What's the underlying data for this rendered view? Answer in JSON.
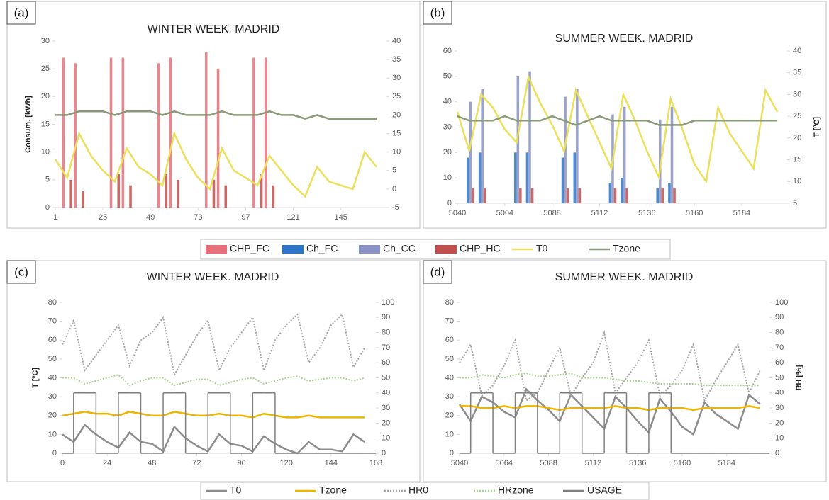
{
  "chart_data": [
    {
      "type": "combo",
      "panel": "(a)",
      "title": "WINTER WEEK. MADRID",
      "ylabel": "Consum. [kWh]",
      "x": [
        1,
        7,
        13,
        19,
        25,
        31,
        37,
        43,
        49,
        55,
        61,
        67,
        73,
        79,
        85,
        91,
        97,
        103,
        109,
        115,
        121,
        127,
        133,
        139,
        145,
        151,
        157,
        163
      ],
      "xlim": [
        1,
        168
      ],
      "xticks": [
        1,
        25,
        49,
        73,
        97,
        121,
        145
      ],
      "ylim": [
        0,
        30
      ],
      "yticks": [
        0,
        5,
        10,
        15,
        20,
        25,
        30
      ],
      "y2lim": [
        -5,
        40
      ],
      "y2ticks": [
        -5,
        0,
        5,
        10,
        15,
        20,
        25,
        30,
        35,
        40
      ],
      "series": [
        {
          "name": "CHP_FC",
          "type": "bar",
          "color": "#e8707a",
          "values": [
            0,
            27,
            26,
            0,
            0,
            27,
            27,
            0,
            0,
            26,
            27,
            0,
            0,
            28,
            25,
            0,
            0,
            27,
            27,
            0,
            0,
            0,
            0,
            0,
            0,
            0,
            0,
            0
          ]
        },
        {
          "name": "Ch_FC",
          "type": "bar",
          "color": "#2e75c8",
          "values": [
            0,
            0,
            0,
            0,
            0,
            0,
            0,
            0,
            0,
            0,
            0,
            0,
            0,
            0,
            0,
            0,
            0,
            0,
            0,
            0,
            0,
            0,
            0,
            0,
            0,
            0,
            0,
            0
          ]
        },
        {
          "name": "Ch_CC",
          "type": "bar",
          "color": "#8a93c4",
          "values": [
            0,
            0,
            0,
            0,
            0,
            0,
            0,
            0,
            0,
            0,
            0,
            0,
            0,
            0,
            0,
            0,
            0,
            0,
            0,
            0,
            0,
            0,
            0,
            0,
            0,
            0,
            0,
            0
          ]
        },
        {
          "name": "CHP_HC",
          "type": "bar",
          "color": "#c0504d",
          "values": [
            0,
            5,
            3,
            0,
            0,
            6,
            4,
            0,
            0,
            6,
            5,
            0,
            0,
            5,
            4,
            0,
            0,
            6,
            4,
            0,
            0,
            0,
            0,
            0,
            0,
            0,
            0,
            0
          ]
        },
        {
          "name": "T0",
          "type": "line",
          "axis": "y2",
          "color": "#ecdf5a",
          "values": [
            8,
            3,
            15,
            9,
            5,
            2,
            11,
            6,
            4,
            1,
            15,
            8,
            3,
            0,
            11,
            5,
            3,
            1,
            9,
            5,
            1,
            -2,
            6,
            2,
            1,
            0,
            10,
            6
          ]
        },
        {
          "name": "Tzone",
          "type": "line",
          "axis": "y2",
          "color": "#8a9a78",
          "values": [
            20,
            20,
            21,
            21,
            21,
            20,
            21,
            21,
            21,
            20,
            21,
            20,
            20,
            20,
            21,
            20,
            20,
            20,
            21,
            20,
            20,
            19,
            20,
            19,
            19,
            19,
            19,
            19
          ]
        }
      ]
    },
    {
      "type": "combo",
      "panel": "(b)",
      "title": "SUMMER WEEK. MADRID",
      "y2label": "T [ºC]",
      "x": [
        5040,
        5046,
        5052,
        5058,
        5064,
        5070,
        5076,
        5082,
        5088,
        5094,
        5100,
        5106,
        5112,
        5118,
        5124,
        5130,
        5136,
        5142,
        5148,
        5154,
        5160,
        5166,
        5172,
        5178,
        5184,
        5190,
        5196,
        5202
      ],
      "xlim": [
        5040,
        5207
      ],
      "xticks": [
        5040,
        5064,
        5088,
        5112,
        5136,
        5160,
        5184
      ],
      "ylim": [
        0,
        60
      ],
      "yticks": [
        0,
        10,
        20,
        30,
        40,
        50,
        60
      ],
      "y2lim": [
        5,
        40
      ],
      "y2ticks": [
        5,
        10,
        15,
        20,
        25,
        30,
        35,
        40
      ],
      "series": [
        {
          "type": "bar",
          "color": "#e8707a",
          "values": [
            0,
            0,
            0,
            0,
            0,
            0,
            0,
            0,
            0,
            0,
            0,
            0,
            0,
            0,
            0,
            0,
            0,
            0,
            0,
            0,
            0,
            0,
            0,
            0,
            0,
            0,
            0,
            0
          ]
        },
        {
          "type": "bar",
          "color": "#2e75c8",
          "values": [
            0,
            18,
            20,
            0,
            0,
            20,
            20,
            0,
            0,
            18,
            20,
            0,
            0,
            8,
            10,
            0,
            0,
            6,
            8,
            0,
            0,
            0,
            0,
            0,
            0,
            0,
            0,
            0
          ]
        },
        {
          "type": "bar",
          "color": "#8a93c4",
          "values": [
            0,
            40,
            45,
            0,
            0,
            50,
            52,
            0,
            0,
            42,
            45,
            0,
            0,
            35,
            38,
            0,
            0,
            33,
            38,
            0,
            0,
            0,
            0,
            0,
            0,
            0,
            0,
            0
          ]
        },
        {
          "type": "bar",
          "color": "#c0504d",
          "values": [
            0,
            6,
            6,
            0,
            0,
            6,
            6,
            0,
            0,
            6,
            6,
            0,
            0,
            6,
            6,
            0,
            0,
            6,
            6,
            0,
            0,
            0,
            0,
            0,
            0,
            0,
            0,
            0
          ]
        },
        {
          "type": "line",
          "axis": "y2",
          "color": "#ecdf5a",
          "values": [
            26,
            17,
            30,
            27,
            22,
            19,
            34,
            28,
            23,
            17,
            31,
            25,
            19,
            13,
            30,
            24,
            17,
            11,
            29,
            22,
            14,
            10,
            27,
            21,
            17,
            13,
            31,
            26
          ]
        },
        {
          "type": "line",
          "axis": "y2",
          "color": "#8a9a78",
          "values": [
            25,
            24,
            24,
            24,
            25,
            24,
            24,
            24,
            25,
            24,
            23,
            24,
            25,
            24,
            24,
            24,
            24,
            23,
            23,
            23,
            24,
            24,
            24,
            24,
            24,
            24,
            24,
            24
          ]
        }
      ]
    },
    {
      "type": "line",
      "panel": "(c)",
      "title": "WINTER WEEK. MADRID",
      "ylabel": "T [ºC]",
      "x": [
        0,
        6,
        12,
        18,
        24,
        30,
        36,
        42,
        48,
        54,
        60,
        66,
        72,
        78,
        84,
        90,
        96,
        102,
        108,
        114,
        120,
        126,
        132,
        138,
        144,
        150,
        156,
        162
      ],
      "xlim": [
        0,
        168
      ],
      "xticks": [
        0,
        24,
        48,
        72,
        96,
        120,
        144,
        168
      ],
      "ylim": [
        0,
        80
      ],
      "yticks": [
        0,
        10,
        20,
        30,
        40,
        50,
        60,
        70,
        80
      ],
      "y2lim": [
        0,
        100
      ],
      "y2ticks": [
        0,
        10,
        20,
        30,
        40,
        50,
        60,
        70,
        80,
        90,
        100
      ],
      "series": [
        {
          "name": "T0",
          "type": "line",
          "color": "#8c8c8c",
          "values": [
            10,
            6,
            15,
            10,
            6,
            3,
            11,
            6,
            5,
            1,
            14,
            8,
            4,
            1,
            10,
            5,
            4,
            1,
            9,
            5,
            2,
            0,
            6,
            2,
            2,
            1,
            10,
            6
          ]
        },
        {
          "name": "Tzone",
          "type": "line",
          "color": "#f0b400",
          "values": [
            20,
            21,
            22,
            21,
            21,
            20,
            22,
            21,
            20,
            20,
            22,
            21,
            20,
            20,
            21,
            20,
            20,
            19,
            21,
            20,
            19,
            19,
            20,
            19,
            19,
            19,
            19,
            19
          ]
        },
        {
          "name": "HR0",
          "type": "line",
          "axis": "y2",
          "dash": true,
          "color": "#a6a6a6",
          "values": [
            72,
            88,
            55,
            65,
            75,
            85,
            58,
            75,
            80,
            90,
            52,
            65,
            78,
            88,
            55,
            70,
            80,
            90,
            55,
            75,
            85,
            92,
            60,
            70,
            85,
            92,
            57,
            70
          ]
        },
        {
          "name": "HRzone",
          "type": "line",
          "axis": "y2",
          "dash": true,
          "color": "#a9d08e",
          "values": [
            50,
            50,
            46,
            48,
            50,
            52,
            45,
            48,
            50,
            50,
            45,
            47,
            49,
            49,
            45,
            47,
            49,
            50,
            46,
            48,
            50,
            51,
            48,
            49,
            50,
            50,
            48,
            50
          ]
        },
        {
          "name": "USAGE",
          "type": "step",
          "axis": "y2",
          "color": "#7f7f7f",
          "values": [
            0,
            40,
            40,
            0,
            0,
            40,
            40,
            0,
            0,
            40,
            40,
            0,
            0,
            40,
            40,
            0,
            0,
            40,
            40,
            0,
            0,
            0,
            0,
            0,
            0,
            0,
            0,
            0
          ]
        }
      ]
    },
    {
      "type": "line",
      "panel": "(d)",
      "title": "SUMMER WEEK. MADRID",
      "y2label": "RH [%]",
      "x": [
        5040,
        5046,
        5052,
        5058,
        5064,
        5070,
        5076,
        5082,
        5088,
        5094,
        5100,
        5106,
        5112,
        5118,
        5124,
        5130,
        5136,
        5142,
        5148,
        5154,
        5160,
        5166,
        5172,
        5178,
        5184,
        5190,
        5196,
        5202
      ],
      "xlim": [
        5040,
        5207
      ],
      "xticks": [
        5040,
        5064,
        5088,
        5112,
        5136,
        5160,
        5184
      ],
      "ylim": [
        0,
        80
      ],
      "yticks": [
        0,
        10,
        20,
        30,
        40,
        50,
        60,
        70,
        80
      ],
      "y2lim": [
        0,
        100
      ],
      "y2ticks": [
        0,
        10,
        20,
        30,
        40,
        50,
        60,
        70,
        80,
        90,
        100
      ],
      "series": [
        {
          "type": "line",
          "color": "#8c8c8c",
          "values": [
            26,
            17,
            30,
            27,
            22,
            19,
            34,
            28,
            23,
            17,
            31,
            25,
            19,
            13,
            30,
            24,
            17,
            11,
            29,
            22,
            14,
            10,
            27,
            21,
            17,
            13,
            31,
            26
          ]
        },
        {
          "type": "line",
          "color": "#f0b400",
          "values": [
            25,
            25,
            24,
            24,
            25,
            24,
            25,
            25,
            24,
            23,
            24,
            24,
            24,
            24,
            25,
            24,
            24,
            23,
            24,
            24,
            24,
            23,
            24,
            24,
            24,
            24,
            25,
            24
          ]
        },
        {
          "type": "line",
          "axis": "y2",
          "dash": true,
          "color": "#a6a6a6",
          "values": [
            60,
            72,
            38,
            45,
            58,
            75,
            35,
            40,
            55,
            70,
            38,
            50,
            60,
            80,
            40,
            50,
            60,
            75,
            38,
            45,
            55,
            72,
            35,
            48,
            60,
            72,
            40,
            55
          ]
        },
        {
          "type": "line",
          "axis": "y2",
          "dash": true,
          "color": "#a9d08e",
          "values": [
            50,
            50,
            52,
            51,
            50,
            52,
            53,
            51,
            51,
            52,
            53,
            50,
            50,
            50,
            49,
            48,
            48,
            47,
            46,
            46,
            46,
            46,
            45,
            45,
            45,
            45,
            45,
            45
          ]
        },
        {
          "type": "step",
          "axis": "y2",
          "color": "#7f7f7f",
          "values": [
            0,
            40,
            40,
            0,
            0,
            40,
            40,
            0,
            0,
            40,
            40,
            0,
            0,
            40,
            40,
            0,
            0,
            40,
            40,
            0,
            0,
            0,
            0,
            0,
            0,
            0,
            0,
            0
          ]
        }
      ]
    }
  ]
}
